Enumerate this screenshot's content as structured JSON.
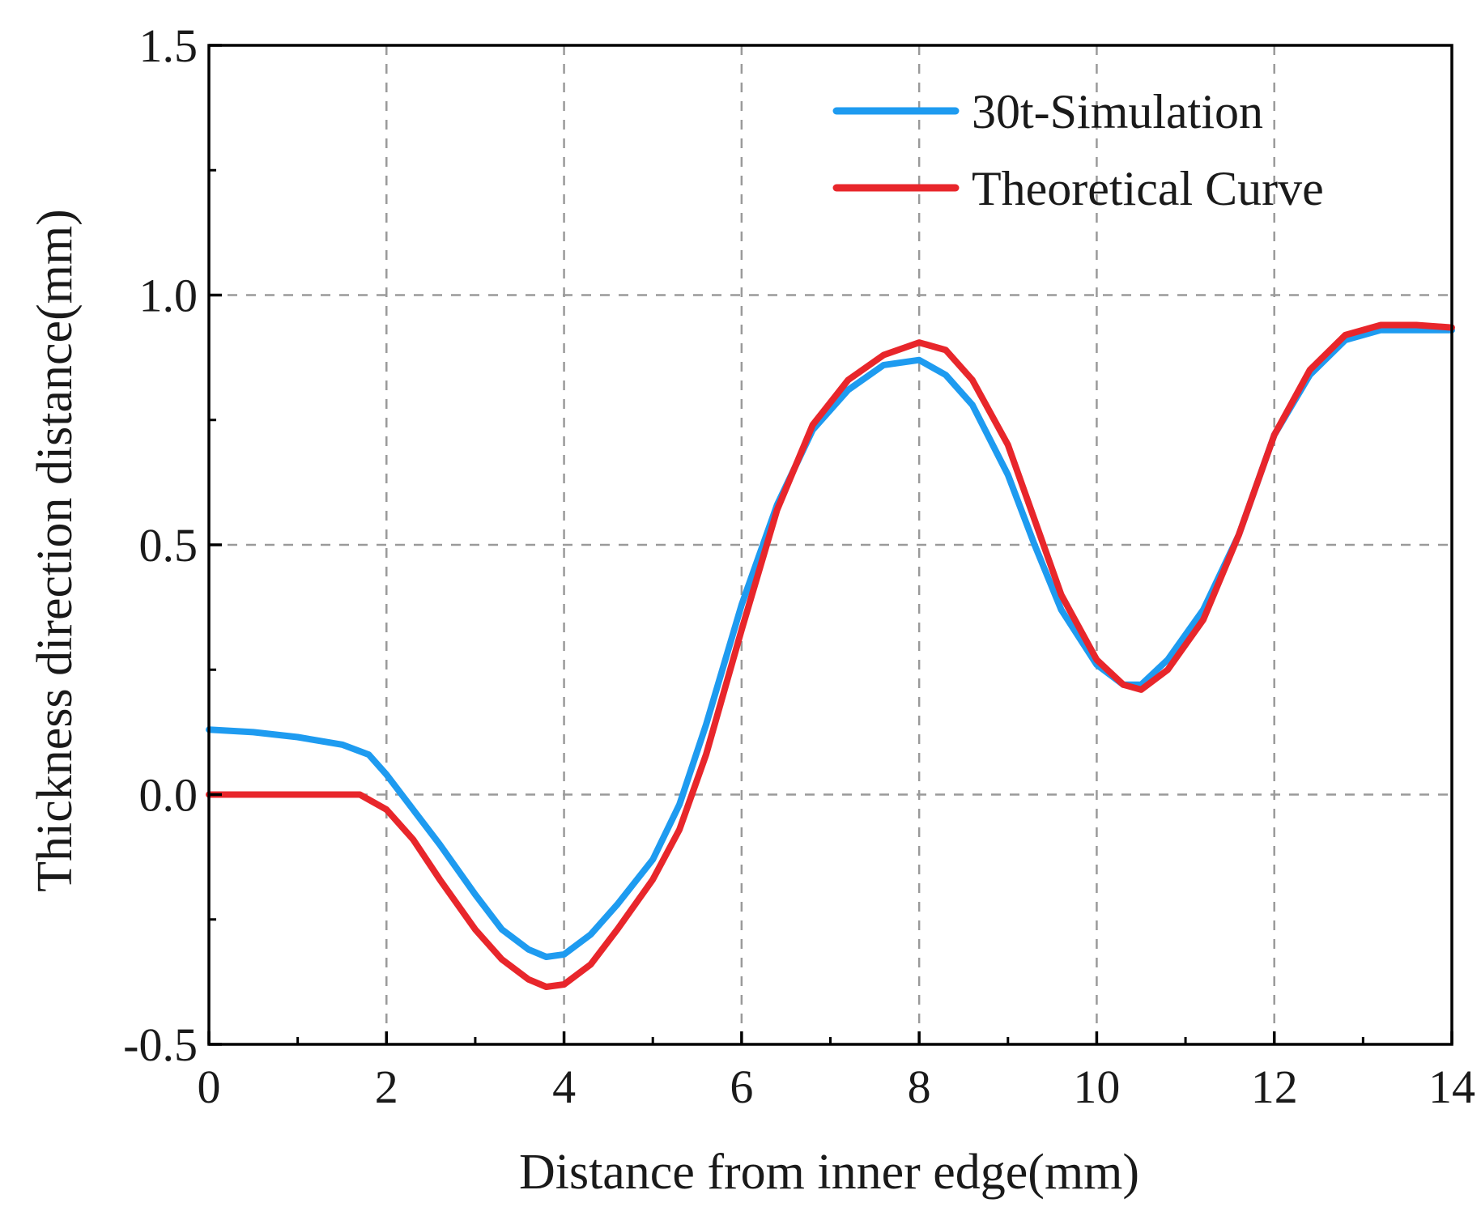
{
  "colors": {
    "sim": "#1E9BF0",
    "theory": "#E8262B",
    "axis": "#000000",
    "grid": "#9a9a9a",
    "text": "#1a1a1a",
    "background": "#ffffff"
  },
  "chart_data": {
    "type": "line",
    "title": "",
    "xlabel": "Distance from inner edge(mm)",
    "ylabel": "Thickness direction distance(mm)",
    "xlim": [
      0,
      14
    ],
    "ylim": [
      -0.5,
      1.5
    ],
    "x_ticks": [
      0,
      2,
      4,
      6,
      8,
      10,
      12,
      14
    ],
    "x_tick_labels": [
      "0",
      "2",
      "4",
      "6",
      "8",
      "10",
      "12",
      "14"
    ],
    "x_minor_ticks": [
      1,
      3,
      5,
      7,
      9,
      11,
      13
    ],
    "y_ticks": [
      -0.5,
      0.0,
      0.5,
      1.0,
      1.5
    ],
    "y_tick_labels": [
      "-0.5",
      "0.0",
      "0.5",
      "1.0",
      "1.5"
    ],
    "y_minor_ticks": [
      -0.25,
      0.25,
      0.75,
      1.25
    ],
    "grid": true,
    "legend_position": "top-right",
    "series": [
      {
        "name": "30t-Simulation",
        "color_key": "sim",
        "x": [
          0,
          0.5,
          1.0,
          1.5,
          1.8,
          2.0,
          2.3,
          2.6,
          3.0,
          3.3,
          3.6,
          3.8,
          4.0,
          4.3,
          4.6,
          5.0,
          5.3,
          5.6,
          6.0,
          6.4,
          6.8,
          7.2,
          7.6,
          8.0,
          8.3,
          8.6,
          9.0,
          9.3,
          9.6,
          10.0,
          10.3,
          10.5,
          10.8,
          11.2,
          11.6,
          12.0,
          12.4,
          12.8,
          13.2,
          13.6,
          14.0
        ],
        "y": [
          0.13,
          0.125,
          0.115,
          0.1,
          0.08,
          0.04,
          -0.03,
          -0.1,
          -0.2,
          -0.27,
          -0.31,
          -0.325,
          -0.32,
          -0.28,
          -0.22,
          -0.13,
          -0.02,
          0.14,
          0.38,
          0.58,
          0.73,
          0.81,
          0.86,
          0.87,
          0.84,
          0.78,
          0.64,
          0.5,
          0.37,
          0.26,
          0.22,
          0.22,
          0.27,
          0.37,
          0.52,
          0.72,
          0.84,
          0.91,
          0.93,
          0.93,
          0.93
        ]
      },
      {
        "name": "Theoretical Curve",
        "color_key": "theory",
        "x": [
          0,
          0.5,
          1.0,
          1.5,
          1.7,
          2.0,
          2.3,
          2.6,
          3.0,
          3.3,
          3.6,
          3.8,
          4.0,
          4.3,
          4.6,
          5.0,
          5.3,
          5.6,
          6.0,
          6.4,
          6.8,
          7.2,
          7.6,
          8.0,
          8.3,
          8.6,
          9.0,
          9.3,
          9.6,
          10.0,
          10.3,
          10.5,
          10.8,
          11.2,
          11.6,
          12.0,
          12.4,
          12.8,
          13.2,
          13.6,
          14.0
        ],
        "y": [
          0.0,
          0.0,
          0.0,
          0.0,
          0.0,
          -0.03,
          -0.09,
          -0.17,
          -0.27,
          -0.33,
          -0.37,
          -0.385,
          -0.38,
          -0.34,
          -0.27,
          -0.17,
          -0.07,
          0.08,
          0.33,
          0.57,
          0.74,
          0.83,
          0.88,
          0.905,
          0.89,
          0.83,
          0.7,
          0.55,
          0.4,
          0.27,
          0.22,
          0.21,
          0.25,
          0.35,
          0.52,
          0.72,
          0.85,
          0.92,
          0.94,
          0.94,
          0.935
        ]
      }
    ]
  }
}
